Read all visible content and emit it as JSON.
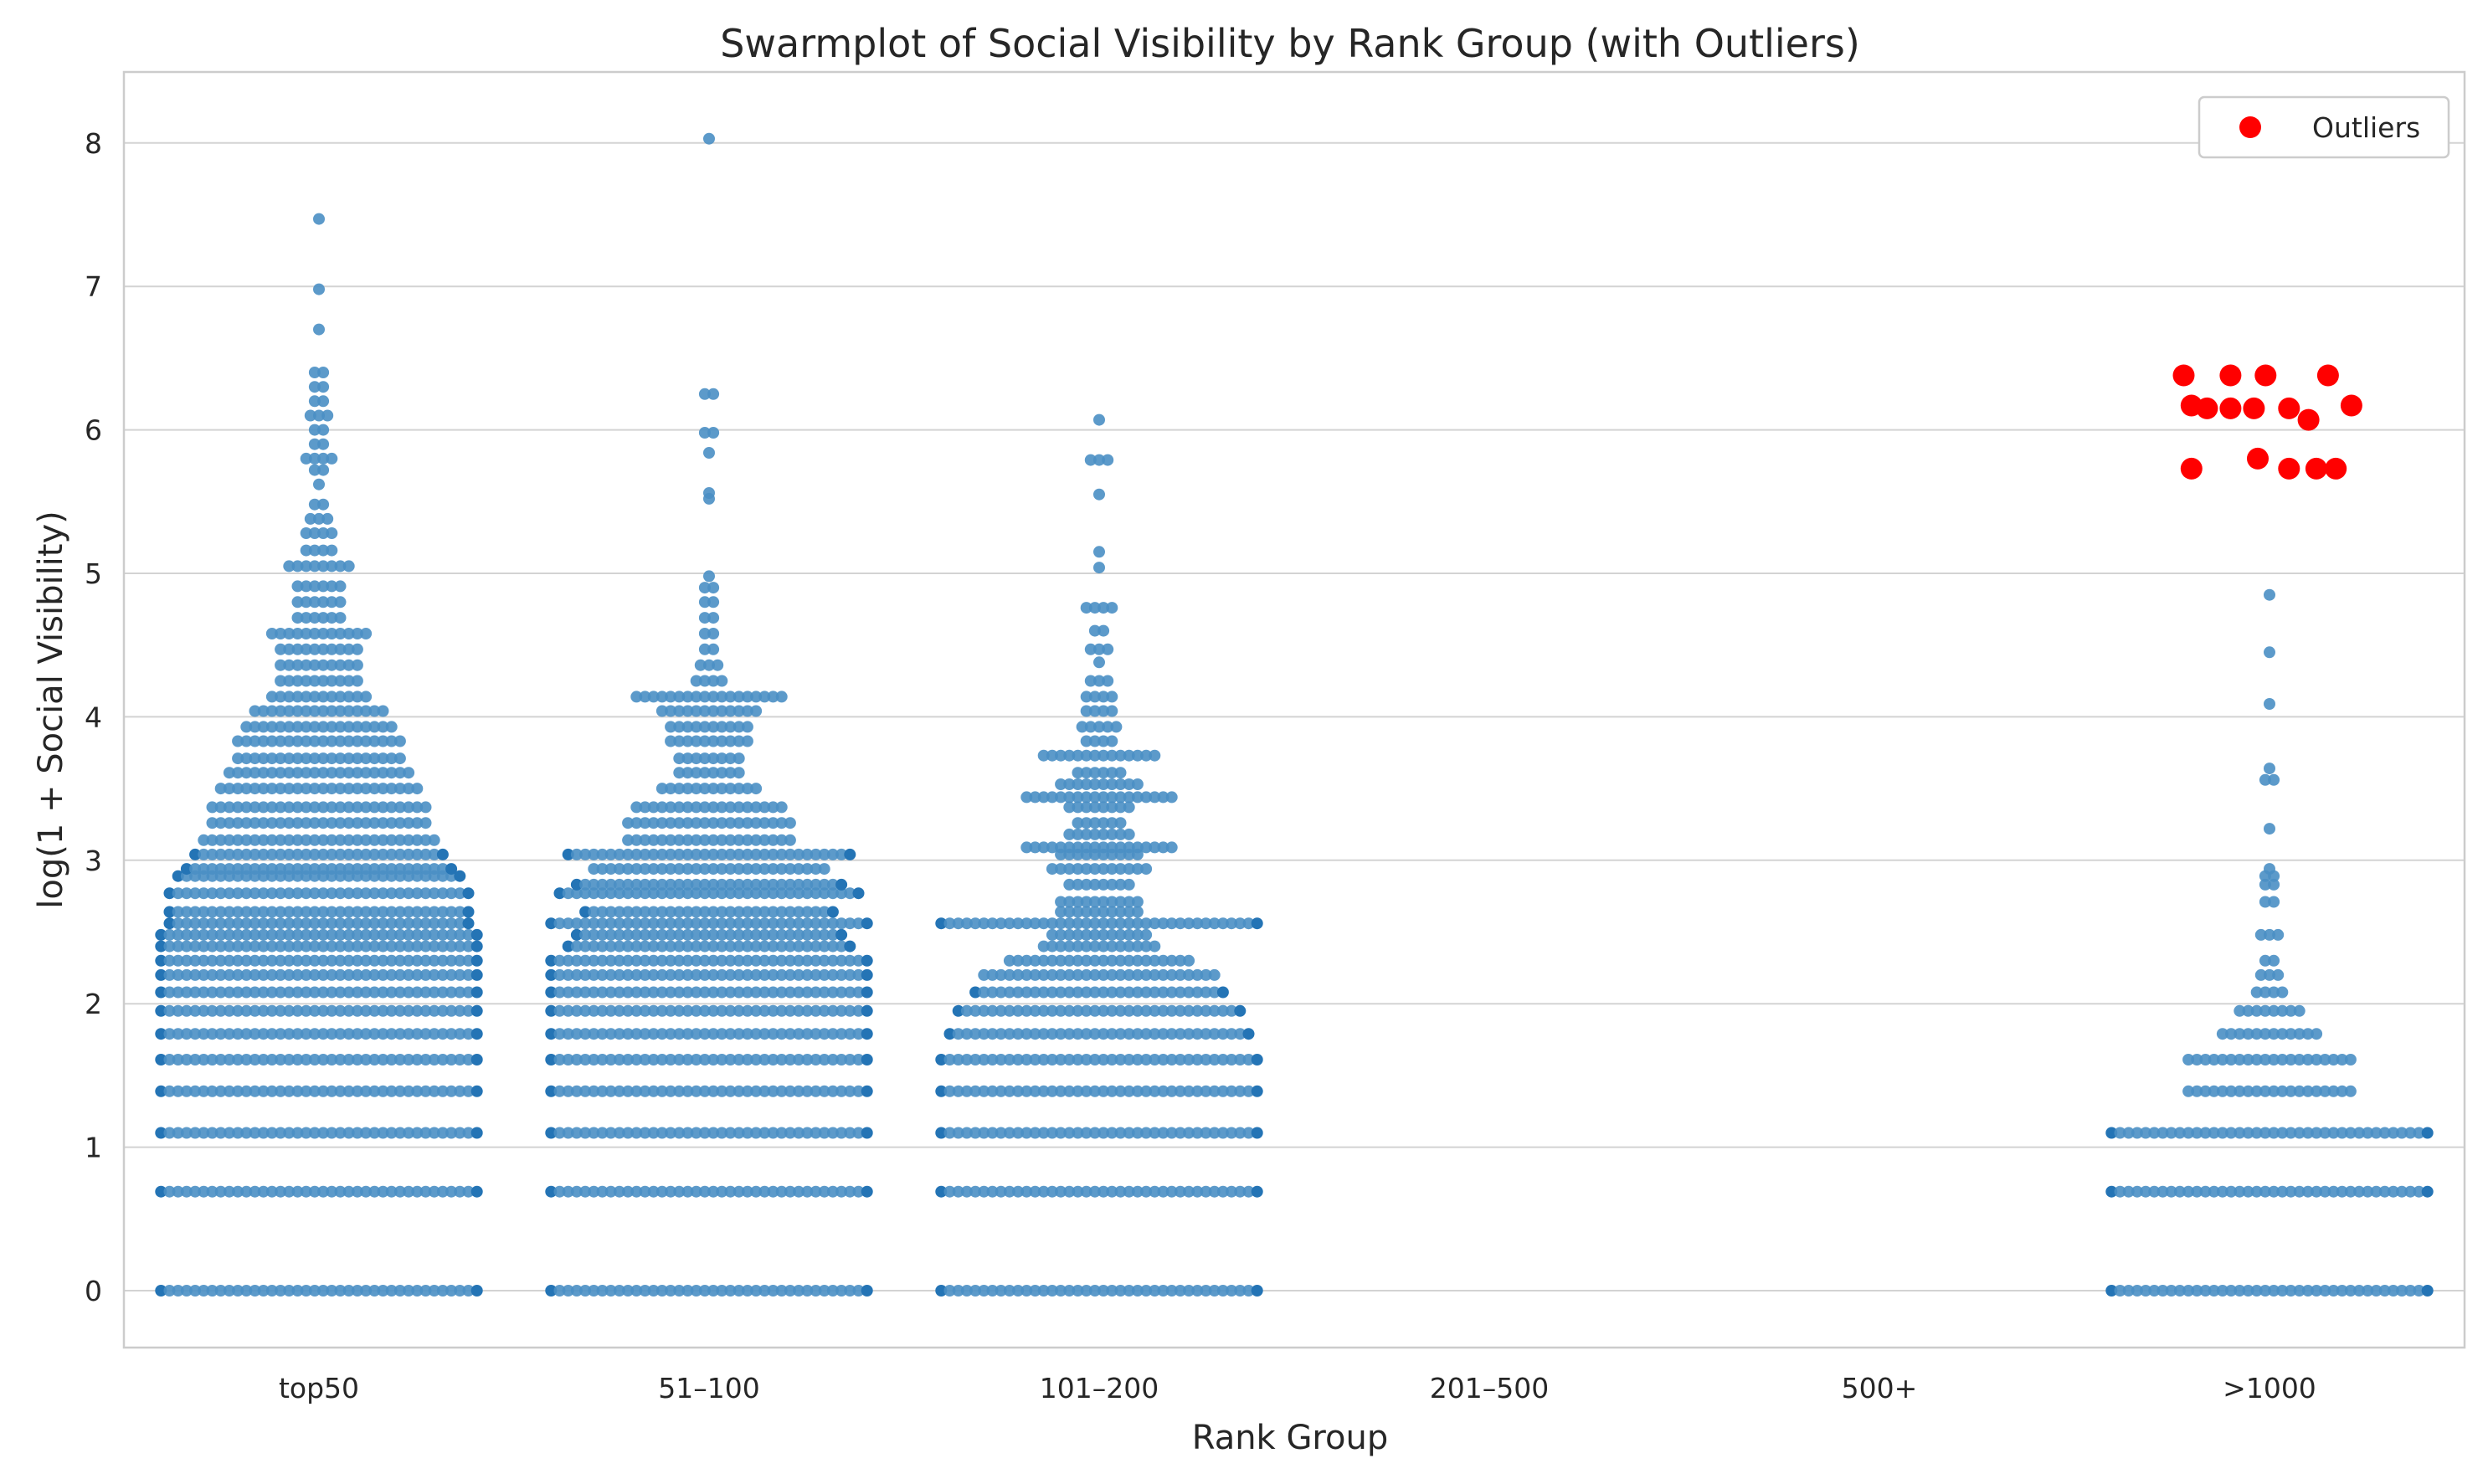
{
  "chart_data": {
    "type": "scatter",
    "subtype": "swarmplot",
    "title": "Swarmplot of Social Visibility by Rank Group (with Outliers)",
    "xlabel": "Rank Group",
    "ylabel": "log(1 + Social Visibility)",
    "categories": [
      "top50",
      "51–100",
      "101–200",
      "201–500",
      "500+",
      ">1000"
    ],
    "ylim": [
      -0.4,
      8.4
    ],
    "yticks": [
      0,
      1,
      2,
      3,
      4,
      5,
      6,
      7,
      8
    ],
    "grid": "horizontal",
    "legend": {
      "placement": "top-right",
      "entries": [
        {
          "label": "Outliers",
          "color": "#ff0000"
        }
      ]
    },
    "colors": {
      "points": "#4a8fc4",
      "outliers": "#ff0000"
    },
    "series": [
      {
        "category": "top50",
        "rows": [
          {
            "y": 0,
            "n": 38
          },
          {
            "y": 0.69,
            "n": 38
          },
          {
            "y": 1.1,
            "n": 38
          },
          {
            "y": 1.39,
            "n": 38
          },
          {
            "y": 1.61,
            "n": 38
          },
          {
            "y": 1.79,
            "n": 38
          },
          {
            "y": 1.95,
            "n": 38
          },
          {
            "y": 2.08,
            "n": 38
          },
          {
            "y": 2.2,
            "n": 38
          },
          {
            "y": 2.3,
            "n": 38
          },
          {
            "y": 2.4,
            "n": 38
          },
          {
            "y": 2.48,
            "n": 38
          },
          {
            "y": 2.56,
            "n": 36
          },
          {
            "y": 2.64,
            "n": 36
          },
          {
            "y": 2.77,
            "n": 36
          },
          {
            "y": 2.89,
            "n": 34
          },
          {
            "y": 2.94,
            "n": 32
          },
          {
            "y": 3.04,
            "n": 30
          },
          {
            "y": 3.14,
            "n": 28
          },
          {
            "y": 3.26,
            "n": 26
          },
          {
            "y": 3.37,
            "n": 26
          },
          {
            "y": 3.5,
            "n": 24
          },
          {
            "y": 3.61,
            "n": 22
          },
          {
            "y": 3.71,
            "n": 20
          },
          {
            "y": 3.83,
            "n": 20
          },
          {
            "y": 3.93,
            "n": 18
          },
          {
            "y": 4.04,
            "n": 16
          },
          {
            "y": 4.14,
            "n": 12
          },
          {
            "y": 4.25,
            "n": 10
          },
          {
            "y": 4.36,
            "n": 10
          },
          {
            "y": 4.47,
            "n": 10
          },
          {
            "y": 4.58,
            "n": 12
          },
          {
            "y": 4.69,
            "n": 6
          },
          {
            "y": 4.8,
            "n": 6
          },
          {
            "y": 4.91,
            "n": 6
          },
          {
            "y": 5.05,
            "n": 8
          },
          {
            "y": 5.16,
            "n": 4
          },
          {
            "y": 5.28,
            "n": 4
          },
          {
            "y": 5.38,
            "n": 3
          },
          {
            "y": 5.48,
            "n": 2
          },
          {
            "y": 5.62,
            "n": 1
          },
          {
            "y": 5.72,
            "n": 2
          },
          {
            "y": 5.8,
            "n": 4
          },
          {
            "y": 5.9,
            "n": 2
          },
          {
            "y": 6.0,
            "n": 2
          },
          {
            "y": 6.1,
            "n": 3
          },
          {
            "y": 6.2,
            "n": 2
          },
          {
            "y": 6.3,
            "n": 2
          },
          {
            "y": 6.4,
            "n": 2
          },
          {
            "y": 6.7,
            "n": 1
          },
          {
            "y": 6.98,
            "n": 1
          },
          {
            "y": 7.47,
            "n": 1
          }
        ]
      },
      {
        "category": "51–100",
        "rows": [
          {
            "y": 0,
            "n": 38
          },
          {
            "y": 0.69,
            "n": 38
          },
          {
            "y": 1.1,
            "n": 38
          },
          {
            "y": 1.39,
            "n": 38
          },
          {
            "y": 1.61,
            "n": 38
          },
          {
            "y": 1.79,
            "n": 38
          },
          {
            "y": 1.95,
            "n": 38
          },
          {
            "y": 2.08,
            "n": 38
          },
          {
            "y": 2.2,
            "n": 38
          },
          {
            "y": 2.3,
            "n": 38
          },
          {
            "y": 2.4,
            "n": 34
          },
          {
            "y": 2.48,
            "n": 32
          },
          {
            "y": 2.56,
            "n": 38
          },
          {
            "y": 2.64,
            "n": 30
          },
          {
            "y": 2.77,
            "n": 36
          },
          {
            "y": 2.83,
            "n": 32
          },
          {
            "y": 2.94,
            "n": 28
          },
          {
            "y": 3.04,
            "n": 34
          },
          {
            "y": 3.14,
            "n": 20
          },
          {
            "y": 3.26,
            "n": 20
          },
          {
            "y": 3.37,
            "n": 18
          },
          {
            "y": 3.5,
            "n": 12
          },
          {
            "y": 3.61,
            "n": 8
          },
          {
            "y": 3.71,
            "n": 8
          },
          {
            "y": 3.83,
            "n": 10
          },
          {
            "y": 3.93,
            "n": 10
          },
          {
            "y": 4.04,
            "n": 12
          },
          {
            "y": 4.14,
            "n": 18
          },
          {
            "y": 4.25,
            "n": 4
          },
          {
            "y": 4.36,
            "n": 3
          },
          {
            "y": 4.47,
            "n": 2
          },
          {
            "y": 4.58,
            "n": 2
          },
          {
            "y": 4.69,
            "n": 2
          },
          {
            "y": 4.8,
            "n": 2
          },
          {
            "y": 4.9,
            "n": 2
          },
          {
            "y": 4.98,
            "n": 1
          },
          {
            "y": 5.52,
            "n": 1
          },
          {
            "y": 5.56,
            "n": 1
          },
          {
            "y": 5.84,
            "n": 1
          },
          {
            "y": 5.98,
            "n": 2
          },
          {
            "y": 6.25,
            "n": 2
          },
          {
            "y": 8.03,
            "n": 1
          }
        ]
      },
      {
        "category": "101–200",
        "rows": [
          {
            "y": 0,
            "n": 38
          },
          {
            "y": 0.69,
            "n": 38
          },
          {
            "y": 1.1,
            "n": 38
          },
          {
            "y": 1.39,
            "n": 38
          },
          {
            "y": 1.61,
            "n": 38
          },
          {
            "y": 1.79,
            "n": 36
          },
          {
            "y": 1.95,
            "n": 34
          },
          {
            "y": 2.08,
            "n": 30
          },
          {
            "y": 2.2,
            "n": 28
          },
          {
            "y": 2.3,
            "n": 22
          },
          {
            "y": 2.4,
            "n": 14
          },
          {
            "y": 2.48,
            "n": 12
          },
          {
            "y": 2.56,
            "n": 38
          },
          {
            "y": 2.64,
            "n": 10
          },
          {
            "y": 2.71,
            "n": 10
          },
          {
            "y": 2.83,
            "n": 8
          },
          {
            "y": 2.94,
            "n": 12
          },
          {
            "y": 3.04,
            "n": 10
          },
          {
            "y": 3.09,
            "n": 18
          },
          {
            "y": 3.18,
            "n": 8
          },
          {
            "y": 3.26,
            "n": 6
          },
          {
            "y": 3.37,
            "n": 8
          },
          {
            "y": 3.44,
            "n": 18
          },
          {
            "y": 3.53,
            "n": 10
          },
          {
            "y": 3.61,
            "n": 6
          },
          {
            "y": 3.73,
            "n": 14
          },
          {
            "y": 3.83,
            "n": 4
          },
          {
            "y": 3.93,
            "n": 5
          },
          {
            "y": 4.04,
            "n": 4
          },
          {
            "y": 4.14,
            "n": 4
          },
          {
            "y": 4.25,
            "n": 3
          },
          {
            "y": 4.38,
            "n": 1
          },
          {
            "y": 4.47,
            "n": 3
          },
          {
            "y": 4.6,
            "n": 2
          },
          {
            "y": 4.76,
            "n": 4
          },
          {
            "y": 5.04,
            "n": 1
          },
          {
            "y": 5.15,
            "n": 1
          },
          {
            "y": 5.55,
            "n": 1
          },
          {
            "y": 5.79,
            "n": 3
          },
          {
            "y": 6.07,
            "n": 1
          }
        ]
      },
      {
        "category": "201–500",
        "rows": []
      },
      {
        "category": "500+",
        "rows": []
      },
      {
        "category": ">1000",
        "rows": [
          {
            "y": 0,
            "n": 38
          },
          {
            "y": 0.69,
            "n": 38
          },
          {
            "y": 1.1,
            "n": 38
          },
          {
            "y": 1.39,
            "n": 20
          },
          {
            "y": 1.61,
            "n": 20
          },
          {
            "y": 1.79,
            "n": 12
          },
          {
            "y": 1.95,
            "n": 8
          },
          {
            "y": 2.08,
            "n": 4
          },
          {
            "y": 2.2,
            "n": 3
          },
          {
            "y": 2.3,
            "n": 2
          },
          {
            "y": 2.48,
            "n": 3
          },
          {
            "y": 2.71,
            "n": 2
          },
          {
            "y": 2.83,
            "n": 2
          },
          {
            "y": 2.89,
            "n": 2
          },
          {
            "y": 2.94,
            "n": 1
          },
          {
            "y": 3.22,
            "n": 1
          },
          {
            "y": 3.56,
            "n": 2
          },
          {
            "y": 3.64,
            "n": 1
          },
          {
            "y": 4.09,
            "n": 1
          },
          {
            "y": 4.45,
            "n": 1
          },
          {
            "y": 4.85,
            "n": 1
          }
        ],
        "outliers": [
          {
            "x": -0.22,
            "y": 6.38
          },
          {
            "x": -0.1,
            "y": 6.38
          },
          {
            "x": -0.01,
            "y": 6.38
          },
          {
            "x": 0.15,
            "y": 6.38
          },
          {
            "x": -0.2,
            "y": 6.17
          },
          {
            "x": -0.16,
            "y": 6.15
          },
          {
            "x": -0.1,
            "y": 6.15
          },
          {
            "x": -0.04,
            "y": 6.15
          },
          {
            "x": 0.05,
            "y": 6.15
          },
          {
            "x": 0.21,
            "y": 6.17
          },
          {
            "x": 0.1,
            "y": 6.07
          },
          {
            "x": -0.2,
            "y": 5.73
          },
          {
            "x": -0.03,
            "y": 5.8
          },
          {
            "x": 0.05,
            "y": 5.73
          },
          {
            "x": 0.12,
            "y": 5.73
          },
          {
            "x": 0.17,
            "y": 5.73
          }
        ]
      }
    ]
  }
}
